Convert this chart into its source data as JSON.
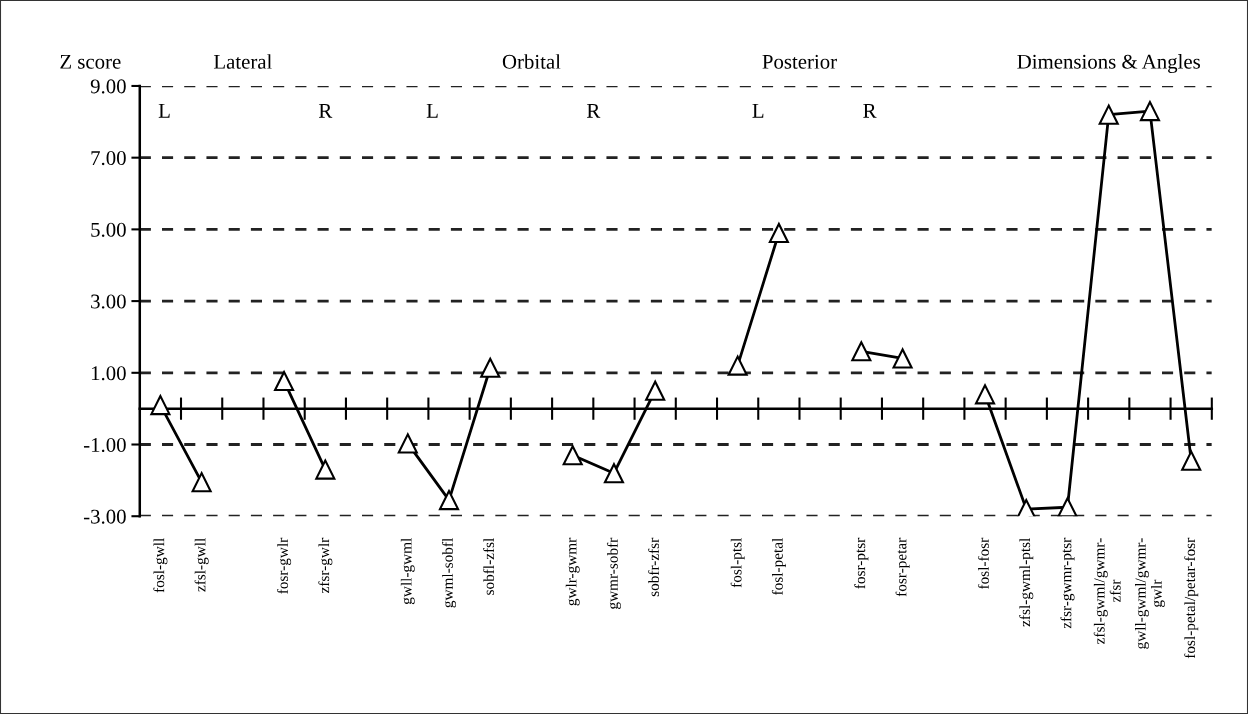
{
  "chart_data": {
    "type": "line",
    "categories": [
      "fosl-gwll",
      "zfsl-gwll",
      null,
      "fosr-gwlr",
      "zfsr-gwlr",
      null,
      "gwll-gwml",
      "gwml-sobfl",
      "sobfl-zfsl",
      null,
      "gwlr-gwmr",
      "gwmr-sobfr",
      "sobfr-zfsr",
      null,
      "fosl-ptsl",
      "fosl-petal",
      null,
      "fosr-ptsr",
      "fosr-petar",
      null,
      "fosl-fosr",
      "zfsl-gwml-ptsl",
      "zfsr-gwmr-ptsr",
      "zfsl-gwml/gwmr-\nzfsr",
      "gwll-gwml/gwmr-\ngwlr",
      "fosl-petal/petar-fosr"
    ],
    "series": [
      {
        "color": "#000000",
        "values": [
          0.1,
          -2.05,
          null,
          0.77,
          -1.7,
          null,
          -0.97,
          -2.55,
          1.14,
          null,
          -1.3,
          -1.8,
          0.5,
          null,
          1.2,
          4.9,
          null,
          1.6,
          1.4,
          null,
          0.4,
          -2.8,
          -2.75,
          8.2,
          8.3,
          -1.45
        ]
      }
    ],
    "ylabel": "Z score",
    "ylim": [
      -3,
      9
    ],
    "yticks": [
      {
        "value": 9,
        "label": "9.00"
      },
      {
        "value": 7,
        "label": "7.00"
      },
      {
        "value": 5,
        "label": "5.00"
      },
      {
        "value": 3,
        "label": "3.00"
      },
      {
        "value": 1,
        "label": "1.00"
      },
      {
        "value": -1,
        "label": "-1.00"
      },
      {
        "value": -3,
        "label": "-3.00"
      }
    ],
    "grid": "y",
    "marker": "triangle",
    "line_style": "solid",
    "annotations": [
      "Lateral",
      "Orbital",
      "Posterior",
      "Dimensions & Angles",
      "L",
      "R",
      "L",
      "R",
      "L",
      "R"
    ]
  }
}
